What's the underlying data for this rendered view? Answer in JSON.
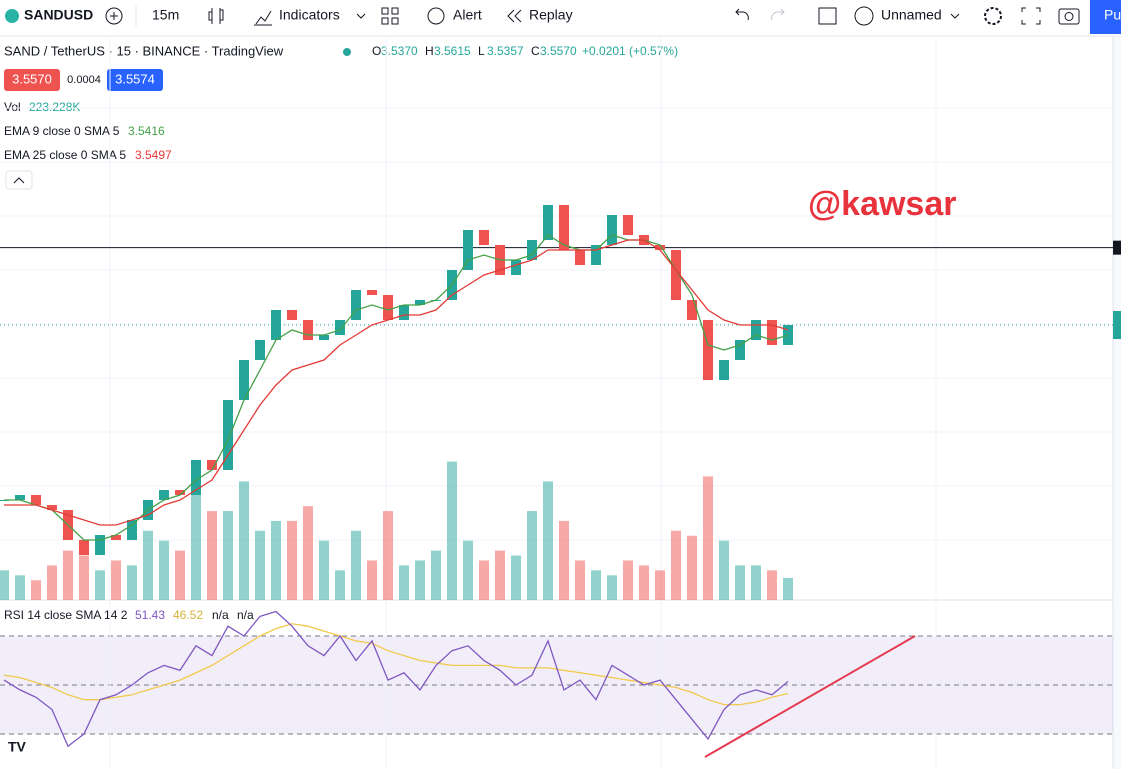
{
  "toolbar": {
    "symbol": "SANDUSD",
    "interval": "15m",
    "indicators": "Indicators",
    "alert": "Alert",
    "replay": "Replay",
    "layout": "Unnamed",
    "publish": "Pu"
  },
  "legend": {
    "title": "SAND / TetherUS · 15 · BINANCE · TradingView",
    "ohlc": [
      {
        "label": "O",
        "value": "3.5370"
      },
      {
        "label": "H",
        "value": "3.5615"
      },
      {
        "label": "L",
        "value": "3.5357"
      },
      {
        "label": "C",
        "value": "3.5570"
      }
    ],
    "change": "+0.0201 (+0.57%)",
    "bid": "3.5570",
    "spread": "0.0004",
    "ask": "3.5574",
    "na": [
      "n/a",
      "n/a"
    ]
  },
  "watermark": "@kawsar",
  "chart_data": {
    "type": "candlestick",
    "up_color": "#26a69a",
    "down_color": "#ef5350",
    "close": [
      3.2945,
      3.302,
      3.287,
      3.2795,
      3.2345,
      3.212,
      3.242,
      3.2345,
      3.2645,
      3.2945,
      3.3095,
      3.302,
      3.3545,
      3.3395,
      3.4445,
      3.5045,
      3.5345,
      3.5795,
      3.5645,
      3.5345,
      3.542,
      3.5645,
      3.6095,
      3.602,
      3.5645,
      3.587,
      3.5945,
      3.5945,
      3.6395,
      3.6995,
      3.677,
      3.632,
      3.6545,
      3.6845,
      3.737,
      3.6695,
      3.647,
      3.677,
      3.722,
      3.692,
      3.677,
      3.6695,
      3.5945,
      3.5645,
      3.4745,
      3.5045,
      3.5345,
      3.5645,
      3.527,
      3.557
    ],
    "ylim": [
      3.1445,
      3.782
    ],
    "hline": 3.673,
    "ema": [
      {
        "name": "EMA 9 close 0 SMA 5",
        "color": "#43a047",
        "values": [
          3.2945,
          3.2945,
          3.287,
          3.2795,
          3.257,
          3.2345,
          3.2345,
          3.242,
          3.257,
          3.2795,
          3.2945,
          3.302,
          3.3245,
          3.3395,
          3.3845,
          3.4445,
          3.4895,
          3.5345,
          3.5495,
          3.542,
          3.542,
          3.5495,
          3.5795,
          3.587,
          3.5795,
          3.587,
          3.587,
          3.5945,
          3.617,
          3.6545,
          3.662,
          3.6545,
          3.6545,
          3.662,
          3.692,
          3.677,
          3.6695,
          3.6695,
          3.692,
          3.6845,
          3.6845,
          3.677,
          3.6395,
          3.602,
          3.527,
          3.5195,
          3.527,
          3.542,
          3.5345,
          3.5416
        ]
      },
      {
        "name": "EMA 25 close 0 SMA 5",
        "color": "#e53935",
        "values": [
          3.287,
          3.287,
          3.287,
          3.2795,
          3.272,
          3.2645,
          3.257,
          3.257,
          3.2645,
          3.272,
          3.287,
          3.2945,
          3.3095,
          3.3245,
          3.362,
          3.3995,
          3.437,
          3.467,
          3.4895,
          3.497,
          3.5045,
          3.527,
          3.542,
          3.557,
          3.5645,
          3.572,
          3.572,
          3.5795,
          3.602,
          3.617,
          3.632,
          3.6395,
          3.647,
          3.6545,
          3.6695,
          3.6695,
          3.6695,
          3.6695,
          3.677,
          3.6845,
          3.6845,
          3.6695,
          3.6395,
          3.6095,
          3.5795,
          3.5645,
          3.557,
          3.557,
          3.557,
          3.5497
        ]
      }
    ],
    "volume": {
      "name": "Vol",
      "values": [
        300000,
        250000,
        200000,
        350000,
        500000,
        450000,
        300000,
        400000,
        350000,
        700000,
        600000,
        500000,
        1100000,
        900000,
        900000,
        1200000,
        700000,
        800000,
        800000,
        950000,
        600000,
        300000,
        700000,
        400000,
        900000,
        350000,
        400000,
        500000,
        1400000,
        600000,
        400000,
        500000,
        450000,
        900000,
        1200000,
        800000,
        400000,
        300000,
        250000,
        400000,
        350000,
        300000,
        700000,
        650000,
        1250000,
        600000,
        350000,
        350000,
        300000,
        223228
      ],
      "last_label": "223.228K",
      "ylim": [
        0,
        4300000
      ]
    },
    "rsi": {
      "name": "RSI 14 close SMA 14 2",
      "color": "#7e57c2",
      "values": [
        52,
        48,
        45,
        40,
        25,
        30,
        44,
        46,
        50,
        55,
        58,
        56,
        66,
        62,
        74,
        70,
        78,
        80,
        74,
        66,
        62,
        70,
        60,
        68,
        52,
        55,
        48,
        58,
        64,
        66,
        60,
        56,
        50,
        54,
        68,
        48,
        52,
        44,
        58,
        54,
        50,
        52,
        44,
        36,
        28,
        40,
        46,
        48,
        46,
        51.43
      ],
      "sma": {
        "color": "#f2c94c",
        "values": [
          54,
          53,
          51,
          49,
          46,
          44,
          44,
          45,
          46,
          48,
          50,
          52,
          55,
          58,
          62,
          66,
          70,
          73,
          75,
          74,
          72,
          70,
          68,
          67,
          64,
          62,
          60,
          59,
          58,
          58,
          58,
          58,
          57,
          57,
          57,
          56,
          55,
          54,
          53,
          52,
          51,
          50,
          49,
          47,
          44,
          42,
          42,
          43,
          45,
          46.52
        ]
      },
      "ylim": [
        17.35,
        82.65
      ],
      "bands": [
        70,
        50,
        30
      ]
    }
  }
}
